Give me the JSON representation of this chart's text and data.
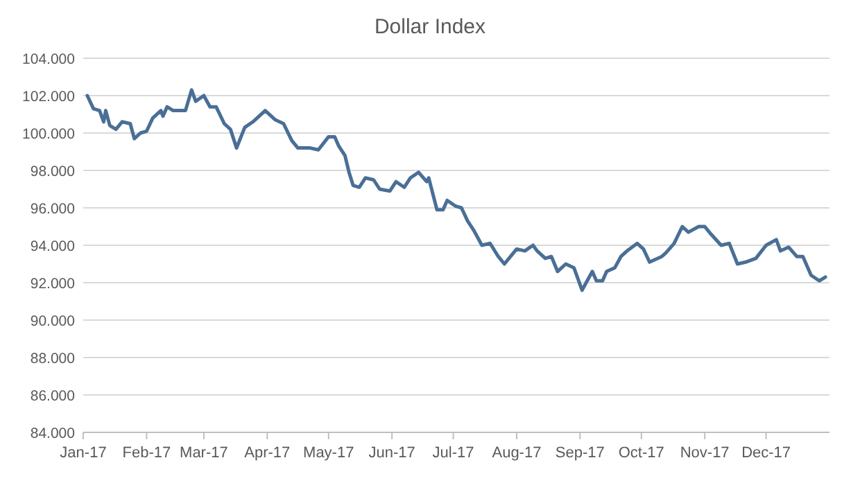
{
  "chart_data": {
    "type": "line",
    "title": "Dollar Index",
    "x": [
      "2017-01-03",
      "2017-01-06",
      "2017-01-09",
      "2017-01-11",
      "2017-01-12",
      "2017-01-14",
      "2017-01-17",
      "2017-01-20",
      "2017-01-24",
      "2017-01-26",
      "2017-01-29",
      "2017-02-01",
      "2017-02-04",
      "2017-02-08",
      "2017-02-09",
      "2017-02-11",
      "2017-02-14",
      "2017-02-20",
      "2017-02-23",
      "2017-02-25",
      "2017-03-01",
      "2017-03-04",
      "2017-03-07",
      "2017-03-11",
      "2017-03-14",
      "2017-03-17",
      "2017-03-21",
      "2017-03-25",
      "2017-03-31",
      "2017-04-05",
      "2017-04-09",
      "2017-04-13",
      "2017-04-16",
      "2017-04-22",
      "2017-04-26",
      "2017-05-01",
      "2017-05-04",
      "2017-05-06",
      "2017-05-09",
      "2017-05-11",
      "2017-05-13",
      "2017-05-16",
      "2017-05-19",
      "2017-05-23",
      "2017-05-26",
      "2017-05-31",
      "2017-06-03",
      "2017-06-07",
      "2017-06-10",
      "2017-06-14",
      "2017-06-18",
      "2017-06-19",
      "2017-06-23",
      "2017-06-26",
      "2017-06-28",
      "2017-07-02",
      "2017-07-05",
      "2017-07-08",
      "2017-07-11",
      "2017-07-15",
      "2017-07-19",
      "2017-07-23",
      "2017-07-26",
      "2017-07-29",
      "2017-08-01",
      "2017-08-05",
      "2017-08-09",
      "2017-08-11",
      "2017-08-15",
      "2017-08-18",
      "2017-08-21",
      "2017-08-25",
      "2017-08-29",
      "2017-09-02",
      "2017-09-07",
      "2017-09-09",
      "2017-09-12",
      "2017-09-14",
      "2017-09-18",
      "2017-09-21",
      "2017-09-24",
      "2017-09-29",
      "2017-10-02",
      "2017-10-05",
      "2017-10-11",
      "2017-10-13",
      "2017-10-17",
      "2017-10-21",
      "2017-10-24",
      "2017-10-29",
      "2017-11-01",
      "2017-11-04",
      "2017-11-09",
      "2017-11-13",
      "2017-11-17",
      "2017-11-21",
      "2017-11-26",
      "2017-12-01",
      "2017-12-06",
      "2017-12-08",
      "2017-12-12",
      "2017-12-16",
      "2017-12-19",
      "2017-12-23",
      "2017-12-27",
      "2017-12-30"
    ],
    "series": [
      {
        "color": "#4a6f96",
        "values": [
          102.0,
          101.3,
          101.2,
          100.6,
          101.2,
          100.4,
          100.2,
          100.6,
          100.5,
          99.7,
          100.0,
          100.1,
          100.8,
          101.2,
          100.9,
          101.4,
          101.2,
          101.2,
          102.3,
          101.7,
          102.0,
          101.4,
          101.4,
          100.5,
          100.2,
          99.2,
          100.3,
          100.6,
          101.2,
          100.7,
          100.5,
          99.6,
          99.2,
          99.2,
          99.1,
          99.8,
          99.8,
          99.3,
          98.8,
          97.9,
          97.2,
          97.1,
          97.6,
          97.5,
          97.0,
          96.9,
          97.4,
          97.1,
          97.6,
          97.9,
          97.4,
          97.6,
          95.9,
          95.9,
          96.4,
          96.1,
          96.0,
          95.3,
          94.8,
          94.0,
          94.1,
          93.4,
          93.0,
          93.4,
          93.8,
          93.7,
          94.0,
          93.7,
          93.3,
          93.4,
          92.6,
          93.0,
          92.8,
          91.6,
          92.6,
          92.1,
          92.1,
          92.6,
          92.8,
          93.4,
          93.7,
          94.1,
          93.8,
          93.1,
          93.4,
          93.6,
          94.1,
          95.0,
          94.7,
          95.0,
          95.0,
          94.6,
          94.0,
          94.1,
          93.0,
          93.1,
          93.3,
          94.0,
          94.3,
          93.7,
          93.9,
          93.4,
          93.4,
          92.4,
          92.1,
          92.3
        ]
      }
    ],
    "xlim": [
      "2017-01-01",
      "2018-01-01"
    ],
    "xticks": [
      {
        "value": "2017-01-01",
        "label": "Jan-17"
      },
      {
        "value": "2017-02-01",
        "label": "Feb-17"
      },
      {
        "value": "2017-03-01",
        "label": "Mar-17"
      },
      {
        "value": "2017-04-01",
        "label": "Apr-17"
      },
      {
        "value": "2017-05-01",
        "label": "May-17"
      },
      {
        "value": "2017-06-01",
        "label": "Jun-17"
      },
      {
        "value": "2017-07-01",
        "label": "Jul-17"
      },
      {
        "value": "2017-08-01",
        "label": "Aug-17"
      },
      {
        "value": "2017-09-01",
        "label": "Sep-17"
      },
      {
        "value": "2017-10-01",
        "label": "Oct-17"
      },
      {
        "value": "2017-11-01",
        "label": "Nov-17"
      },
      {
        "value": "2017-12-01",
        "label": "Dec-17"
      }
    ],
    "ylim": [
      84,
      104
    ],
    "yticks": [
      {
        "value": 84,
        "label": "84.000"
      },
      {
        "value": 86,
        "label": "86.000"
      },
      {
        "value": 88,
        "label": "88.000"
      },
      {
        "value": 90,
        "label": "90.000"
      },
      {
        "value": 92,
        "label": "92.000"
      },
      {
        "value": 94,
        "label": "94.000"
      },
      {
        "value": 96,
        "label": "96.000"
      },
      {
        "value": 98,
        "label": "98.000"
      },
      {
        "value": 100,
        "label": "100.000"
      },
      {
        "value": 102,
        "label": "102.000"
      },
      {
        "value": 104,
        "label": "104.000"
      }
    ],
    "grid": "y",
    "marker": "none",
    "line_style": "solid"
  }
}
